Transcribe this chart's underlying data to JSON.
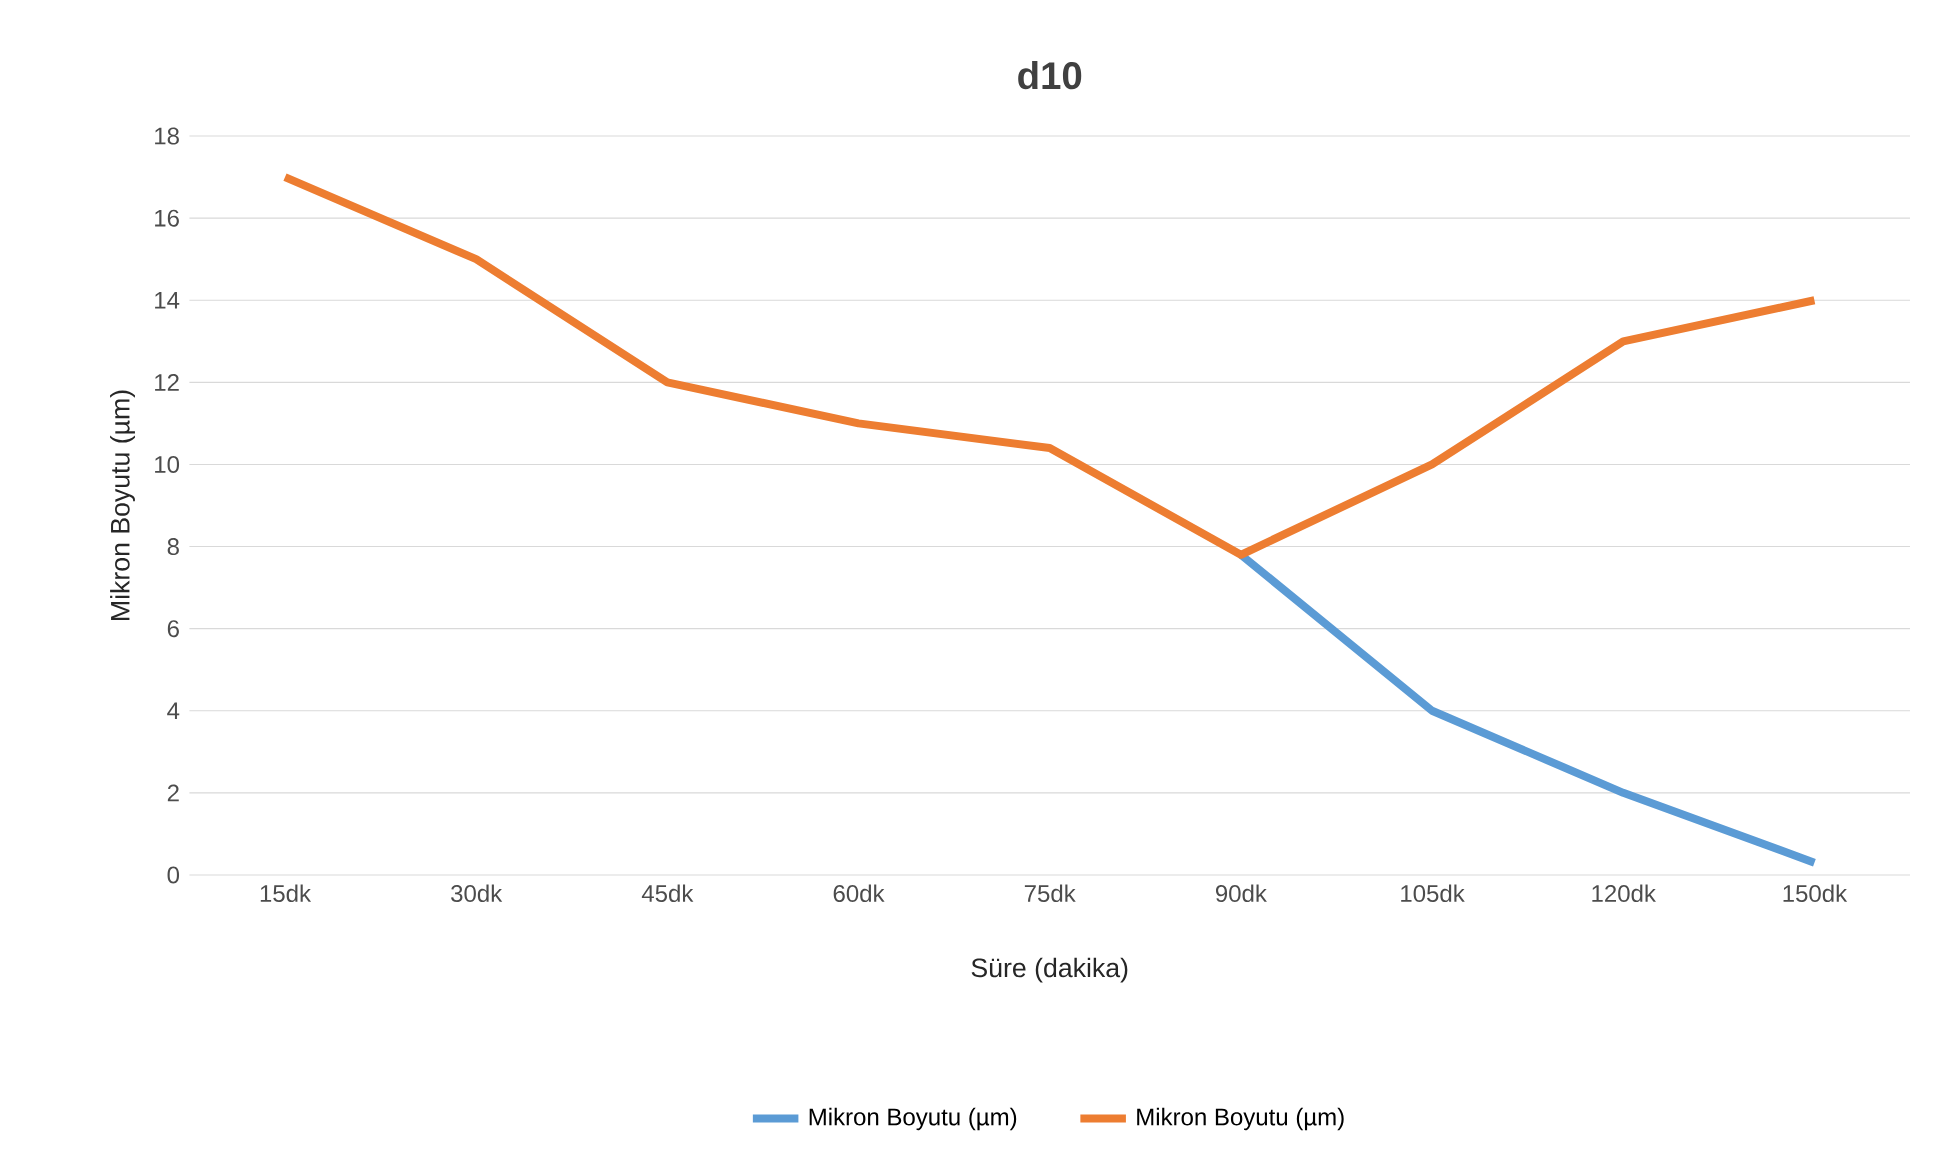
{
  "chart_data": {
    "type": "line",
    "title": "d10",
    "xlabel": "Süre (dakika)",
    "ylabel": "Mikron Boyutu (µm)",
    "categories": [
      "15dk",
      "30dk",
      "45dk",
      "60dk",
      "75dk",
      "90dk",
      "105dk",
      "120dk",
      "150dk"
    ],
    "series": [
      {
        "name": "Mikron Boyutu (µm)",
        "color": "#5b9bd5",
        "values": [
          null,
          null,
          null,
          null,
          null,
          7.8,
          4,
          2,
          0.3
        ]
      },
      {
        "name": "Mikron Boyutu (µm)",
        "color": "#ed7d31",
        "values": [
          17,
          15,
          12,
          11,
          10.4,
          7.8,
          10,
          13,
          14
        ]
      }
    ],
    "ylim": [
      0,
      18
    ],
    "yticks": [
      0,
      2,
      4,
      6,
      8,
      10,
      12,
      14,
      16,
      18
    ],
    "grid": "y",
    "legend": "bottom",
    "marker": "none",
    "line_style": "solid"
  }
}
